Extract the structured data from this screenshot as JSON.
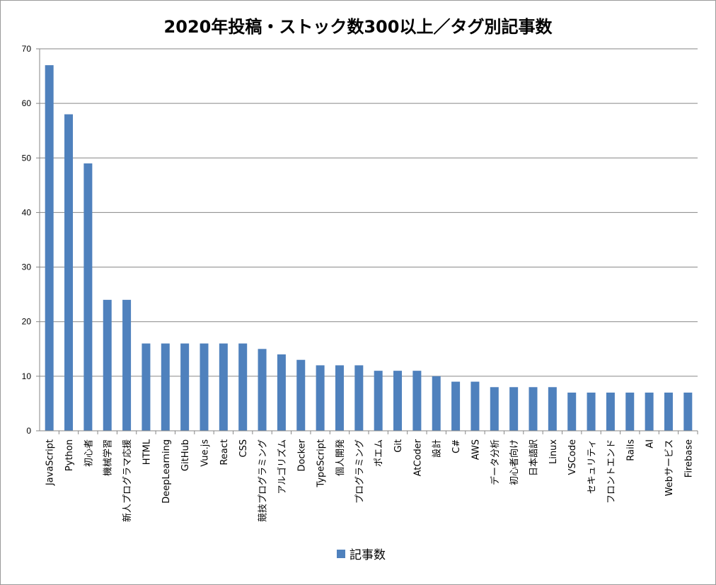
{
  "chart_data": {
    "type": "bar",
    "title": "2020年投稿・ストック数300以上／タグ別記事数",
    "categories": [
      "JavaScript",
      "Python",
      "初心者",
      "機械学習",
      "新人プログラマ応援",
      "HTML",
      "DeepLearning",
      "GitHub",
      "Vue.js",
      "React",
      "CSS",
      "競技プログラミング",
      "アルゴリズム",
      "Docker",
      "TypeScript",
      "個人開発",
      "プログラミング",
      "ポエム",
      "Git",
      "AtCoder",
      "設計",
      "C#",
      "AWS",
      "データ分析",
      "初心者向け",
      "日本語訳",
      "Linux",
      "VSCode",
      "セキュリティ",
      "フロントエンド",
      "Rails",
      "AI",
      "Webサービス",
      "Firebase"
    ],
    "series": [
      {
        "name": "記事数",
        "color": "#4F81BD",
        "values": [
          67,
          58,
          49,
          24,
          24,
          16,
          16,
          16,
          16,
          16,
          16,
          15,
          14,
          13,
          12,
          12,
          12,
          11,
          11,
          11,
          10,
          9,
          9,
          8,
          8,
          8,
          8,
          7,
          7,
          7,
          7,
          7,
          7,
          7
        ]
      }
    ],
    "ylim": [
      0,
      70
    ],
    "yticks": [
      0,
      10,
      20,
      30,
      40,
      50,
      60,
      70
    ],
    "xlabel": "",
    "ylabel": "",
    "grid": true,
    "legend": "bottom"
  }
}
